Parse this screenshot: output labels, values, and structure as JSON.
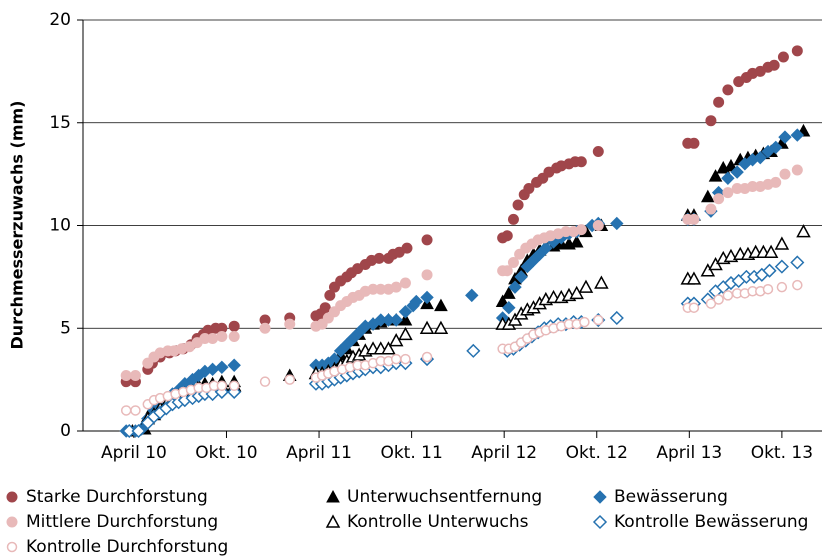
{
  "chart_data": {
    "type": "scatter",
    "y_label": "Durchmesserzuwachs (mm)",
    "xlim": [
      -3.3,
      44.6
    ],
    "ylim": [
      0,
      20
    ],
    "xticks": [
      {
        "value": 0,
        "label": "April 10"
      },
      {
        "value": 6,
        "label": "Okt. 10"
      },
      {
        "value": 12,
        "label": "April 11"
      },
      {
        "value": 18,
        "label": "Okt. 11"
      },
      {
        "value": 24,
        "label": "April 12"
      },
      {
        "value": 30,
        "label": "Okt. 12"
      },
      {
        "value": 36,
        "label": "April 13"
      },
      {
        "value": 42,
        "label": "Okt. 13"
      }
    ],
    "yticks": [
      0,
      5,
      10,
      15,
      20
    ],
    "grid": true,
    "series": [
      {
        "name": "Starke Durchforstung",
        "color": "#a0464b",
        "marker": "circle",
        "filled": true,
        "x": [
          -0.5,
          0.1,
          0.9,
          1.2,
          1.7,
          2.3,
          2.7,
          3.2,
          3.7,
          4.1,
          4.5,
          4.8,
          5.3,
          5.7,
          6.5,
          8.5,
          10.1,
          11.8,
          12.1,
          12.4,
          12.7,
          13.0,
          13.4,
          13.8,
          14.1,
          14.5,
          15.0,
          15.4,
          15.9,
          16.5,
          16.8,
          17.2,
          17.7,
          19.0,
          23.9,
          24.2,
          24.6,
          24.9,
          25.3,
          25.6,
          26.1,
          26.5,
          26.9,
          27.4,
          27.7,
          28.2,
          28.6,
          29.0,
          30.1,
          35.9,
          36.3,
          37.4,
          37.9,
          38.5,
          39.2,
          39.7,
          40.1,
          40.6,
          41.1,
          41.5,
          42.1,
          43.0
        ],
        "values": [
          2.4,
          2.4,
          3.0,
          3.3,
          3.6,
          3.8,
          3.9,
          4.0,
          4.2,
          4.5,
          4.7,
          4.9,
          5.0,
          5.0,
          5.1,
          5.4,
          5.5,
          5.6,
          5.7,
          6.0,
          6.6,
          7.0,
          7.3,
          7.5,
          7.7,
          7.9,
          8.1,
          8.3,
          8.4,
          8.4,
          8.6,
          8.7,
          8.9,
          9.3,
          9.4,
          9.5,
          10.3,
          11.0,
          11.5,
          11.8,
          12.1,
          12.3,
          12.6,
          12.8,
          12.9,
          13.0,
          13.1,
          13.1,
          13.6,
          14.0,
          14.0,
          15.1,
          16.0,
          16.6,
          17.0,
          17.2,
          17.4,
          17.5,
          17.7,
          17.8,
          18.2,
          18.5
        ]
      },
      {
        "name": "Unterwuchsentfernung",
        "color": "#000000",
        "marker": "triangle",
        "filled": true,
        "x": [
          -0.1,
          0.7,
          0.9,
          1.3,
          1.7,
          2.1,
          2.5,
          2.9,
          3.3,
          3.8,
          4.2,
          4.6,
          5.1,
          5.7,
          6.5,
          10.1,
          11.8,
          12.2,
          12.6,
          13.0,
          13.4,
          13.8,
          14.2,
          14.6,
          15.0,
          15.5,
          16.0,
          16.5,
          17.0,
          17.6,
          19.0,
          19.9,
          23.9,
          24.3,
          24.7,
          25.1,
          25.5,
          25.9,
          26.3,
          26.7,
          27.2,
          27.7,
          28.2,
          28.7,
          29.3,
          30.3,
          35.9,
          36.3,
          37.2,
          37.7,
          38.2,
          38.7,
          39.3,
          39.8,
          40.3,
          40.8,
          41.3,
          42.0,
          43.4
        ],
        "values": [
          0.0,
          0.1,
          0.7,
          0.9,
          1.1,
          1.4,
          1.6,
          1.8,
          1.9,
          2.1,
          2.2,
          2.3,
          2.3,
          2.4,
          2.4,
          2.7,
          2.8,
          2.8,
          3.0,
          3.3,
          3.7,
          4.0,
          4.4,
          4.7,
          5.0,
          5.2,
          5.3,
          5.4,
          5.4,
          5.4,
          6.2,
          6.1,
          6.3,
          6.7,
          7.4,
          7.8,
          8.3,
          8.6,
          8.8,
          9.0,
          9.0,
          9.1,
          9.1,
          9.2,
          9.7,
          10.0,
          10.5,
          10.5,
          11.4,
          12.4,
          12.8,
          12.9,
          13.2,
          13.3,
          13.4,
          13.5,
          13.6,
          14.0,
          14.6
        ]
      },
      {
        "name": "Bewässerung",
        "color": "#2672b0",
        "marker": "diamond",
        "filled": true,
        "x": [
          -0.5,
          0.1,
          0.5,
          0.9,
          1.3,
          1.7,
          2.1,
          2.5,
          2.9,
          3.3,
          3.8,
          4.2,
          4.6,
          5.1,
          5.7,
          6.5,
          11.8,
          12.2,
          12.6,
          13.0,
          13.4,
          13.8,
          14.2,
          14.6,
          15.0,
          15.5,
          16.0,
          16.5,
          17.0,
          17.6,
          18.1,
          18.3,
          19.0,
          21.9,
          23.9,
          24.3,
          24.7,
          25.1,
          25.5,
          25.9,
          26.3,
          26.7,
          27.2,
          27.7,
          28.2,
          28.7,
          29.7,
          30.1,
          31.3,
          35.9,
          36.3,
          37.4,
          37.9,
          38.5,
          39.1,
          39.6,
          40.1,
          40.6,
          41.1,
          41.6,
          42.2,
          43.0
        ],
        "values": [
          0.0,
          0.0,
          0.1,
          0.6,
          1.0,
          1.3,
          1.6,
          1.8,
          2.0,
          2.3,
          2.5,
          2.7,
          2.9,
          3.0,
          3.1,
          3.2,
          3.2,
          3.2,
          3.3,
          3.5,
          3.9,
          4.2,
          4.5,
          4.8,
          5.1,
          5.2,
          5.4,
          5.4,
          5.4,
          5.8,
          6.1,
          6.3,
          6.5,
          6.6,
          5.5,
          6.0,
          7.0,
          7.5,
          8.0,
          8.3,
          8.6,
          8.9,
          9.2,
          9.4,
          9.6,
          9.7,
          10.0,
          10.1,
          10.1,
          10.3,
          10.3,
          10.7,
          11.6,
          12.3,
          12.6,
          13.0,
          13.2,
          13.3,
          13.6,
          13.8,
          14.3,
          14.4
        ]
      },
      {
        "name": "Mittlere Durchforstung",
        "color": "#e8b9b9",
        "marker": "circle",
        "filled": true,
        "x": [
          -0.5,
          0.1,
          0.9,
          1.3,
          1.7,
          2.2,
          2.6,
          3.1,
          3.6,
          4.1,
          4.6,
          5.1,
          5.7,
          6.5,
          8.5,
          10.1,
          11.8,
          12.2,
          12.6,
          13.0,
          13.4,
          13.8,
          14.2,
          14.6,
          15.0,
          15.5,
          16.0,
          16.5,
          17.0,
          17.6,
          19.0,
          23.9,
          24.2,
          24.6,
          25.0,
          25.4,
          25.8,
          26.2,
          26.6,
          27.0,
          27.5,
          28.0,
          28.5,
          29.0,
          30.1,
          35.9,
          36.3,
          37.4,
          37.9,
          38.5,
          39.1,
          39.6,
          40.1,
          40.6,
          41.1,
          41.6,
          42.2,
          43.0
        ],
        "values": [
          2.7,
          2.7,
          3.3,
          3.6,
          3.8,
          3.9,
          3.9,
          4.0,
          4.1,
          4.3,
          4.5,
          4.5,
          4.6,
          4.6,
          5.0,
          5.2,
          5.1,
          5.2,
          5.5,
          5.8,
          6.1,
          6.3,
          6.5,
          6.6,
          6.8,
          6.9,
          6.9,
          6.9,
          7.0,
          7.2,
          7.6,
          7.8,
          7.8,
          8.2,
          8.6,
          8.9,
          9.1,
          9.3,
          9.4,
          9.5,
          9.6,
          9.7,
          9.7,
          9.8,
          10.0,
          10.3,
          10.3,
          10.8,
          11.3,
          11.6,
          11.8,
          11.8,
          11.9,
          11.9,
          12.0,
          12.1,
          12.5,
          12.7
        ]
      },
      {
        "name": "Kontrolle Unterwuchs",
        "color": "#000000",
        "marker": "triangle",
        "filled": false,
        "x": [
          0.9,
          1.3,
          1.7,
          2.1,
          2.5,
          2.9,
          3.3,
          3.8,
          4.2,
          4.6,
          5.1,
          5.7,
          6.5,
          11.8,
          12.2,
          12.6,
          13.0,
          13.4,
          13.8,
          14.2,
          14.6,
          15.0,
          15.5,
          16.0,
          16.5,
          17.0,
          17.6,
          19.0,
          19.9,
          23.9,
          24.3,
          24.7,
          25.1,
          25.5,
          25.9,
          26.3,
          26.7,
          27.2,
          27.7,
          28.2,
          28.7,
          29.3,
          30.3,
          35.9,
          36.3,
          37.2,
          37.7,
          38.2,
          38.7,
          39.3,
          39.8,
          40.3,
          40.8,
          41.3,
          42.0,
          43.4
        ],
        "values": [
          0.6,
          0.8,
          1.1,
          1.3,
          1.5,
          1.7,
          1.8,
          1.9,
          2.0,
          2.1,
          2.2,
          2.2,
          2.2,
          2.8,
          2.8,
          2.9,
          3.0,
          3.2,
          3.4,
          3.6,
          3.7,
          3.9,
          4.0,
          4.0,
          4.0,
          4.4,
          4.7,
          5.0,
          5.0,
          5.2,
          5.2,
          5.4,
          5.7,
          5.9,
          6.0,
          6.2,
          6.4,
          6.5,
          6.5,
          6.6,
          6.7,
          7.0,
          7.2,
          7.4,
          7.4,
          7.8,
          8.1,
          8.4,
          8.5,
          8.6,
          8.6,
          8.7,
          8.7,
          8.7,
          9.1,
          9.7
        ]
      },
      {
        "name": "Kontrolle Bewässerung",
        "color": "#2672b0",
        "marker": "diamond",
        "filled": false,
        "x": [
          -0.3,
          0.3,
          0.9,
          1.3,
          1.7,
          2.1,
          2.5,
          2.9,
          3.3,
          3.8,
          4.2,
          4.6,
          5.1,
          5.7,
          6.5,
          11.8,
          12.2,
          12.6,
          13.0,
          13.4,
          13.8,
          14.2,
          14.6,
          15.0,
          15.5,
          16.0,
          16.5,
          17.0,
          17.6,
          19.0,
          22.0,
          24.2,
          24.6,
          25.0,
          25.4,
          25.8,
          26.2,
          26.6,
          27.0,
          27.5,
          28.0,
          28.5,
          29.0,
          30.1,
          31.3,
          35.9,
          36.3,
          37.2,
          37.7,
          38.2,
          38.7,
          39.2,
          39.7,
          40.2,
          40.7,
          41.2,
          42.0,
          43.0
        ],
        "values": [
          0.0,
          0.0,
          0.4,
          0.7,
          0.9,
          1.1,
          1.3,
          1.4,
          1.5,
          1.6,
          1.7,
          1.8,
          1.8,
          1.9,
          1.9,
          2.3,
          2.3,
          2.4,
          2.5,
          2.6,
          2.7,
          2.8,
          2.9,
          3.0,
          3.1,
          3.1,
          3.2,
          3.3,
          3.3,
          3.5,
          3.9,
          3.9,
          4.0,
          4.2,
          4.4,
          4.6,
          4.8,
          5.0,
          5.1,
          5.2,
          5.2,
          5.3,
          5.3,
          5.4,
          5.5,
          6.2,
          6.2,
          6.4,
          6.8,
          7.0,
          7.2,
          7.3,
          7.5,
          7.5,
          7.6,
          7.8,
          8.0,
          8.2
        ]
      },
      {
        "name": "Kontrolle Durchforstung",
        "color": "#e8b9b9",
        "marker": "circle",
        "filled": false,
        "x": [
          -0.5,
          0.1,
          0.9,
          1.3,
          1.7,
          2.2,
          2.7,
          3.2,
          3.7,
          4.2,
          4.7,
          5.2,
          5.7,
          6.5,
          8.5,
          10.1,
          11.8,
          12.2,
          12.6,
          13.0,
          13.5,
          14.0,
          14.5,
          15.0,
          15.5,
          16.0,
          16.5,
          17.0,
          17.6,
          19.0,
          23.9,
          24.3,
          24.7,
          25.1,
          25.5,
          25.9,
          26.3,
          26.7,
          27.2,
          27.7,
          28.2,
          28.7,
          29.2,
          30.1,
          35.9,
          36.3,
          37.4,
          37.9,
          38.5,
          39.1,
          39.6,
          40.1,
          40.6,
          41.1,
          42.0,
          43.0
        ],
        "values": [
          1.0,
          1.0,
          1.3,
          1.5,
          1.6,
          1.7,
          1.8,
          1.9,
          2.0,
          2.1,
          2.1,
          2.2,
          2.2,
          2.2,
          2.4,
          2.5,
          2.6,
          2.7,
          2.8,
          2.9,
          3.0,
          3.1,
          3.2,
          3.2,
          3.3,
          3.4,
          3.4,
          3.5,
          3.5,
          3.6,
          4.0,
          4.0,
          4.1,
          4.3,
          4.5,
          4.7,
          4.8,
          4.9,
          5.0,
          5.1,
          5.2,
          5.2,
          5.3,
          5.4,
          6.0,
          6.0,
          6.2,
          6.4,
          6.6,
          6.7,
          6.7,
          6.8,
          6.8,
          6.9,
          7.0,
          7.1
        ]
      }
    ]
  }
}
